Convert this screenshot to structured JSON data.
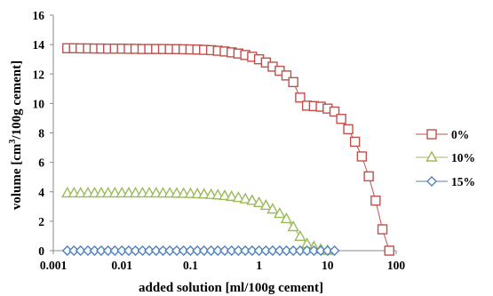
{
  "chart_data": {
    "type": "scatter",
    "xscale": "log",
    "xlim": [
      0.001,
      100
    ],
    "ylim": [
      0,
      16
    ],
    "xticks": [
      "0.001",
      "0.01",
      "0.1",
      "1",
      "10",
      "100"
    ],
    "yticks": [
      "0",
      "2",
      "4",
      "6",
      "8",
      "10",
      "12",
      "14",
      "16"
    ],
    "xlabel": "added solution [ml/100g cement]",
    "ylabel_main": "volume [cm",
    "ylabel_sup": "3",
    "ylabel_rest": "/100g cement]",
    "grid": false,
    "legend_position": "right",
    "series": [
      {
        "name": "0%",
        "marker": "square",
        "color": "#c0504d",
        "x": [
          0.0016,
          0.002,
          0.0025,
          0.0032,
          0.004,
          0.005,
          0.0063,
          0.0079,
          0.01,
          0.0126,
          0.0158,
          0.02,
          0.0251,
          0.0316,
          0.0398,
          0.05,
          0.0631,
          0.0794,
          0.1,
          0.126,
          0.158,
          0.2,
          0.251,
          0.316,
          0.398,
          0.5,
          0.631,
          0.794,
          1.0,
          1.26,
          1.58,
          2.0,
          2.51,
          3.16,
          3.98,
          5.01,
          6.31,
          7.94,
          10.0,
          12.6,
          15.8,
          20.0,
          25.1,
          31.6,
          39.8,
          50.1,
          63.1,
          79.4
        ],
        "y": [
          13.75,
          13.75,
          13.74,
          13.74,
          13.73,
          13.73,
          13.72,
          13.72,
          13.72,
          13.71,
          13.71,
          13.7,
          13.7,
          13.7,
          13.7,
          13.69,
          13.69,
          13.68,
          13.67,
          13.66,
          13.64,
          13.62,
          13.58,
          13.53,
          13.47,
          13.39,
          13.29,
          13.17,
          13.0,
          12.78,
          12.5,
          12.22,
          11.9,
          11.45,
          10.4,
          9.85,
          9.82,
          9.78,
          9.65,
          9.45,
          8.95,
          8.25,
          7.4,
          6.4,
          5.05,
          3.4,
          1.45,
          0.0
        ]
      },
      {
        "name": "10%",
        "marker": "triangle",
        "color": "#9bbb59",
        "x": [
          0.0016,
          0.002,
          0.0025,
          0.0032,
          0.004,
          0.005,
          0.0063,
          0.0079,
          0.01,
          0.0126,
          0.0158,
          0.02,
          0.0251,
          0.0316,
          0.0398,
          0.05,
          0.0631,
          0.0794,
          0.1,
          0.126,
          0.158,
          0.2,
          0.251,
          0.316,
          0.398,
          0.5,
          0.631,
          0.794,
          1.0,
          1.26,
          1.58,
          2.0,
          2.51,
          3.16,
          3.98,
          5.01,
          6.31,
          7.94,
          10.0
        ],
        "y": [
          3.9,
          3.9,
          3.9,
          3.9,
          3.9,
          3.9,
          3.9,
          3.9,
          3.9,
          3.9,
          3.9,
          3.9,
          3.9,
          3.9,
          3.89,
          3.89,
          3.88,
          3.87,
          3.86,
          3.84,
          3.82,
          3.79,
          3.76,
          3.72,
          3.66,
          3.59,
          3.5,
          3.39,
          3.24,
          3.05,
          2.8,
          2.5,
          2.15,
          1.6,
          0.95,
          0.45,
          0.25,
          0.08,
          0.0
        ]
      },
      {
        "name": "15%",
        "marker": "diamond",
        "color": "#4f81bd",
        "x": [
          0.0016,
          0.002,
          0.0025,
          0.0032,
          0.004,
          0.005,
          0.0063,
          0.0079,
          0.01,
          0.0126,
          0.0158,
          0.02,
          0.0251,
          0.0316,
          0.0398,
          0.05,
          0.0631,
          0.0794,
          0.1,
          0.126,
          0.158,
          0.2,
          0.251,
          0.316,
          0.398,
          0.5,
          0.631,
          0.794,
          1.0,
          1.26,
          1.58,
          2.0,
          2.51,
          3.16,
          3.98,
          5.01,
          6.31,
          7.94,
          10.0,
          12.6
        ],
        "y": [
          0,
          0,
          0,
          0,
          0,
          0,
          0,
          0,
          0,
          0,
          0,
          0,
          0,
          0,
          0,
          0,
          0,
          0,
          0,
          0,
          0,
          0,
          0,
          0,
          0,
          0,
          0,
          0,
          0,
          0,
          0,
          0,
          0,
          0,
          0,
          0,
          0,
          0,
          0,
          0
        ]
      }
    ]
  }
}
